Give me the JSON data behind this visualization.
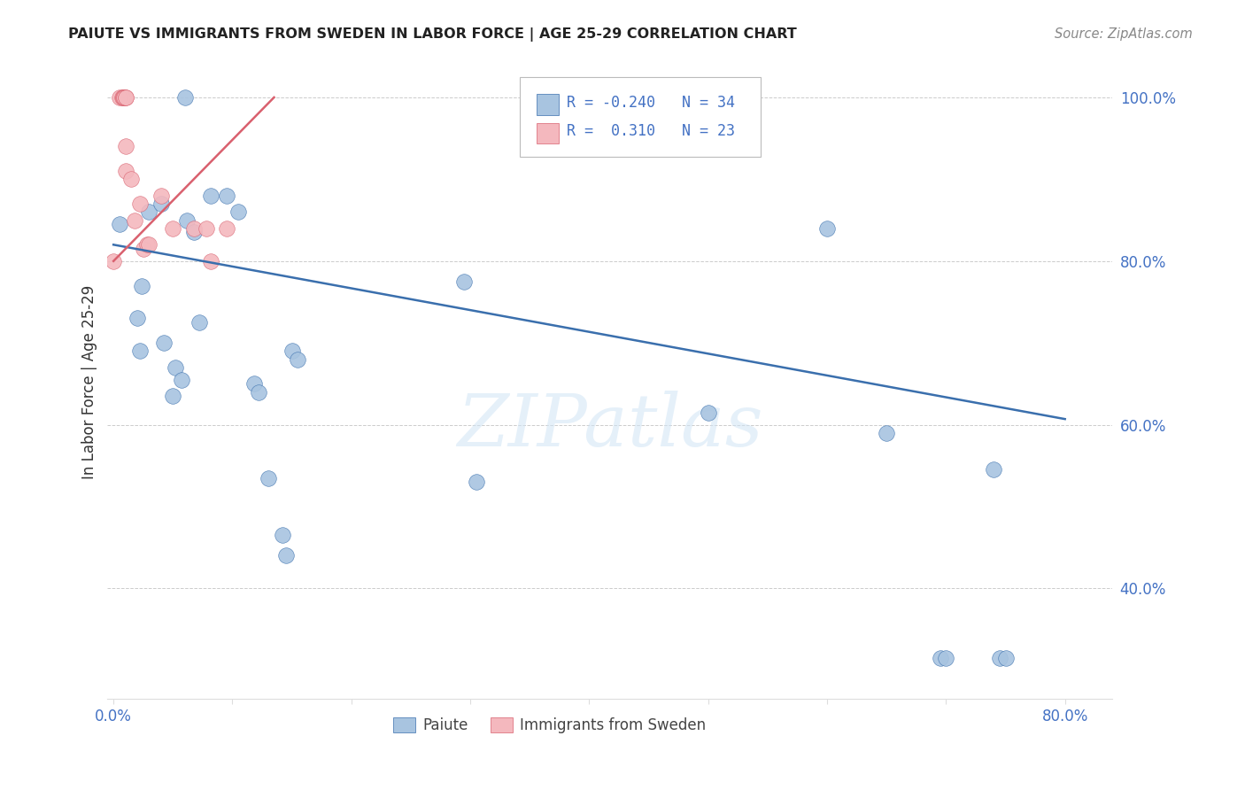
{
  "title": "PAIUTE VS IMMIGRANTS FROM SWEDEN IN LABOR FORCE | AGE 25-29 CORRELATION CHART",
  "source": "Source: ZipAtlas.com",
  "ylabel": "In Labor Force | Age 25-29",
  "blue_color": "#a8c4e0",
  "pink_color": "#f4b8be",
  "blue_line_color": "#3a6fad",
  "pink_line_color": "#d9606e",
  "R_blue": -0.24,
  "N_blue": 34,
  "R_pink": 0.31,
  "N_pink": 23,
  "blue_line_x": [
    0.0,
    0.8
  ],
  "blue_line_y": [
    0.82,
    0.607
  ],
  "pink_line_x": [
    0.0,
    0.135
  ],
  "pink_line_y": [
    0.8,
    1.0
  ],
  "watermark_text": "ZIPatlas",
  "xlim": [
    -0.005,
    0.84
  ],
  "ylim": [
    0.265,
    1.04
  ],
  "yticks": [
    0.4,
    0.6,
    0.8,
    1.0
  ],
  "ytick_labels": [
    "40.0%",
    "60.0%",
    "80.0%",
    "100.0%"
  ],
  "xtick_positions": [
    0.0,
    0.1,
    0.2,
    0.3,
    0.4,
    0.5,
    0.6,
    0.7,
    0.8
  ],
  "xtick_labels": [
    "0.0%",
    "",
    "",
    "",
    "",
    "",
    "",
    "",
    "80.0%"
  ],
  "paiute_x": [
    0.005,
    0.02,
    0.022,
    0.024,
    0.03,
    0.04,
    0.042,
    0.05,
    0.052,
    0.057,
    0.06,
    0.062,
    0.068,
    0.072,
    0.082,
    0.095,
    0.105,
    0.118,
    0.122,
    0.13,
    0.142,
    0.145,
    0.15,
    0.155,
    0.295,
    0.305,
    0.5,
    0.6,
    0.65,
    0.695,
    0.7,
    0.74,
    0.745,
    0.75
  ],
  "paiute_y": [
    0.845,
    0.73,
    0.69,
    0.77,
    0.86,
    0.87,
    0.7,
    0.635,
    0.67,
    0.655,
    1.0,
    0.85,
    0.835,
    0.725,
    0.88,
    0.88,
    0.86,
    0.65,
    0.64,
    0.535,
    0.465,
    0.44,
    0.69,
    0.68,
    0.775,
    0.53,
    0.615,
    0.84,
    0.59,
    0.315,
    0.315,
    0.545,
    0.315,
    0.315
  ],
  "sweden_x": [
    0.0,
    0.005,
    0.007,
    0.008,
    0.008,
    0.009,
    0.009,
    0.01,
    0.01,
    0.01,
    0.01,
    0.015,
    0.018,
    0.022,
    0.025,
    0.028,
    0.03,
    0.04,
    0.05,
    0.068,
    0.078,
    0.082,
    0.095
  ],
  "sweden_y": [
    0.8,
    1.0,
    1.0,
    1.0,
    1.0,
    1.0,
    1.0,
    1.0,
    1.0,
    0.94,
    0.91,
    0.9,
    0.85,
    0.87,
    0.815,
    0.82,
    0.82,
    0.88,
    0.84,
    0.84,
    0.84,
    0.8,
    0.84
  ]
}
